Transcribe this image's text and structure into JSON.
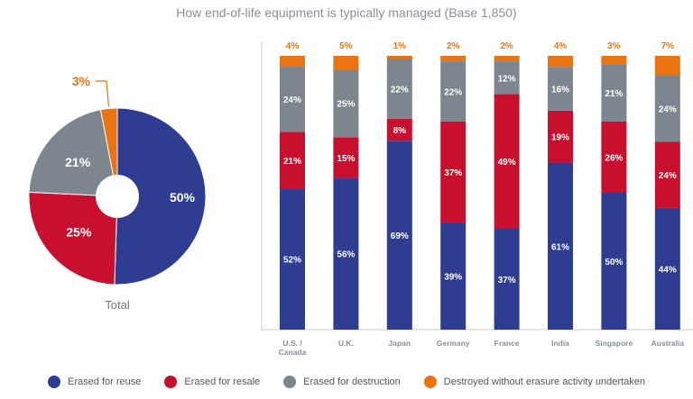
{
  "chart_data": [
    {
      "type": "pie",
      "style": "donut",
      "title": "",
      "label": "Total",
      "slices": [
        {
          "name": "Erased for reuse",
          "value": 50,
          "label": "50%"
        },
        {
          "name": "Erased for resale",
          "value": 25,
          "label": "25%"
        },
        {
          "name": "Erased for destruction",
          "value": 21,
          "label": "21%"
        },
        {
          "name": "Destroyed without erasure activity undertaken",
          "value": 3,
          "label": "3%"
        }
      ]
    },
    {
      "type": "bar",
      "stacked": true,
      "title": "How end-of-life equipment is typically managed (Base 1,850)",
      "categories": [
        "U.S. / Canada",
        "U.K.",
        "Japan",
        "Germany",
        "France",
        "India",
        "Singapore",
        "Australia"
      ],
      "series": [
        {
          "name": "Erased for reuse",
          "color": "#2e3c92",
          "values": [
            52,
            56,
            69,
            39,
            37,
            61,
            50,
            44
          ]
        },
        {
          "name": "Erased for resale",
          "color": "#c8102e",
          "values": [
            21,
            15,
            8,
            37,
            49,
            19,
            26,
            24
          ]
        },
        {
          "name": "Erased for destruction",
          "color": "#7d858e",
          "values": [
            24,
            25,
            22,
            22,
            12,
            16,
            21,
            24
          ]
        },
        {
          "name": "Destroyed without erasure activity undertaken",
          "color": "#ea7411",
          "values": [
            4,
            5,
            1,
            2,
            2,
            4,
            3,
            7
          ]
        }
      ],
      "legend": "bottom"
    }
  ]
}
